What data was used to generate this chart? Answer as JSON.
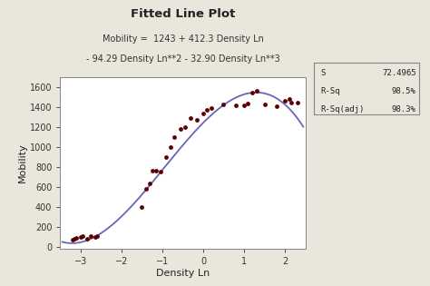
{
  "title": "Fitted Line Plot",
  "subtitle1": "Mobility =  1243 + 412.3 Density Ln",
  "subtitle2": "- 94.29 Density Ln**2 - 32.90 Density Ln**3",
  "xlabel": "Density Ln",
  "ylabel": "Mobility",
  "bg_color": "#eae6dc",
  "plot_bg_color": "#ffffff",
  "line_color": "#6666bb",
  "dot_color": "#5a0000",
  "xlim": [
    -3.5,
    2.5
  ],
  "ylim": [
    -20,
    1700
  ],
  "xticks": [
    -3,
    -2,
    -1,
    0,
    1,
    2
  ],
  "yticks": [
    0,
    200,
    400,
    600,
    800,
    1000,
    1200,
    1400,
    1600
  ],
  "stats": {
    "S": "72.4965",
    "R-Sq": "98.5%",
    "R-Sq(adj)": "98.3%"
  },
  "scatter_x": [
    -3.2,
    -3.15,
    -3.1,
    -3.0,
    -2.95,
    -2.85,
    -2.75,
    -2.65,
    -2.6,
    -1.5,
    -1.4,
    -1.3,
    -1.25,
    -1.15,
    -1.05,
    -0.9,
    -0.8,
    -0.7,
    -0.55,
    -0.45,
    -0.3,
    -0.15,
    0.0,
    0.1,
    0.2,
    0.5,
    0.8,
    1.0,
    1.1,
    1.2,
    1.3,
    1.5,
    1.8,
    2.0,
    2.1,
    2.15,
    2.3
  ],
  "scatter_y": [
    75,
    85,
    90,
    100,
    105,
    80,
    105,
    100,
    110,
    400,
    580,
    640,
    760,
    760,
    750,
    900,
    1000,
    1100,
    1180,
    1200,
    1290,
    1270,
    1340,
    1370,
    1390,
    1430,
    1420,
    1420,
    1435,
    1545,
    1560,
    1430,
    1410,
    1460,
    1480,
    1450,
    1450
  ]
}
